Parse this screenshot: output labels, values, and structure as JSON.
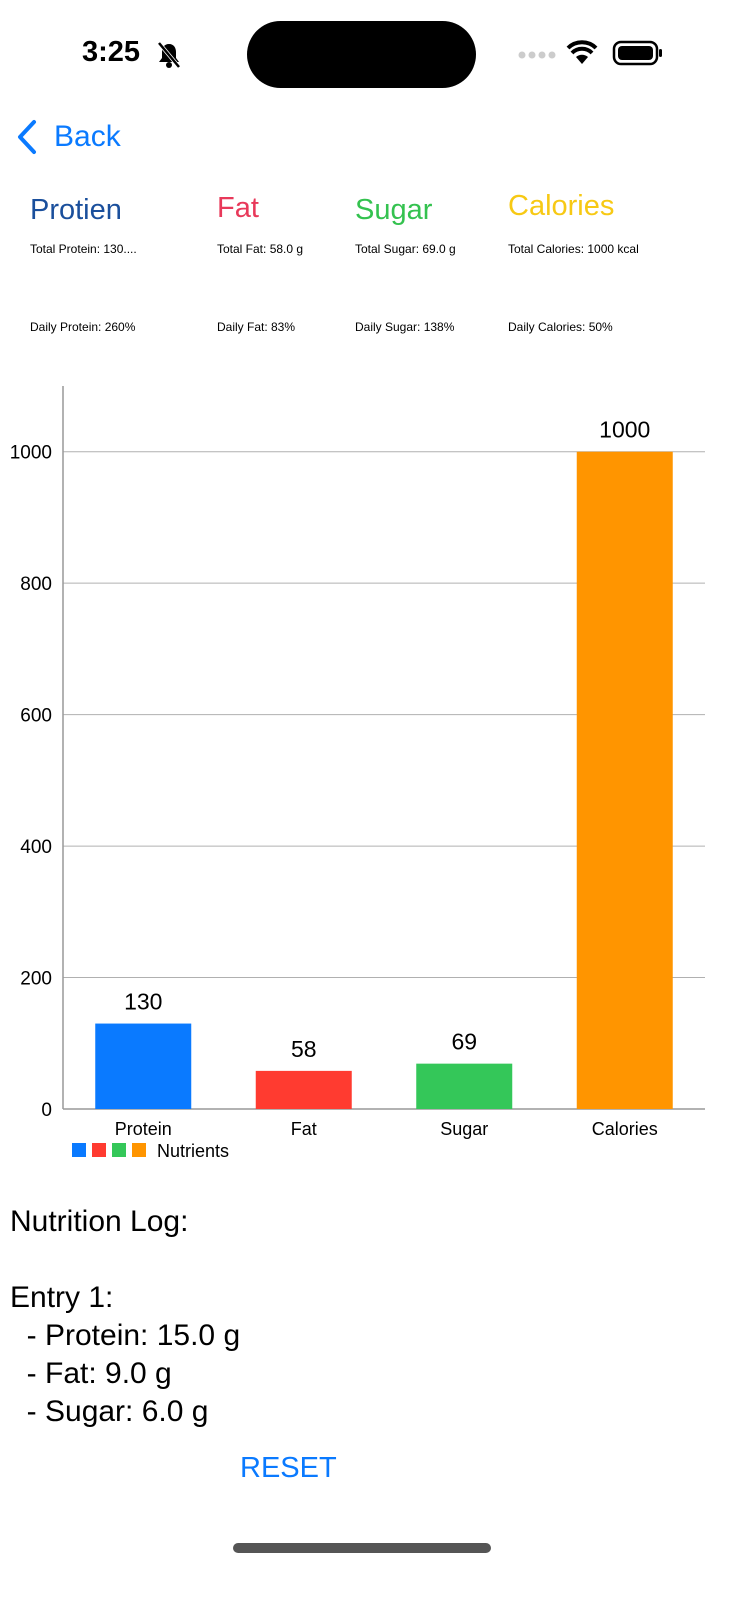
{
  "status_bar": {
    "time": "3:25",
    "icons": [
      "bell-slash-icon",
      "signal-icon",
      "wifi-icon",
      "battery-icon"
    ]
  },
  "nav": {
    "back_label": "Back"
  },
  "summary": [
    {
      "title": "Protien",
      "color": "#1a4f9c",
      "total": "Total Protein: 130....",
      "daily": "Daily Protein: 260%"
    },
    {
      "title": "Fat",
      "color": "#e8395a",
      "total": "Total Fat: 58.0 g",
      "daily": "Daily Fat: 83%"
    },
    {
      "title": "Sugar",
      "color": "#34c24f",
      "total": "Total Sugar: 69.0 g",
      "daily": "Daily Sugar: 138%"
    },
    {
      "title": "Calories",
      "color": "#f7c914",
      "total": "Total Calories: 1000 kcal",
      "daily": "Daily Calories: 50%"
    }
  ],
  "chart_data": {
    "type": "bar",
    "categories": [
      "Protein",
      "Fat",
      "Sugar",
      "Calories"
    ],
    "values": [
      130,
      58,
      69,
      1000
    ],
    "colors": [
      "#0a7aff",
      "#ff3b30",
      "#34c759",
      "#ff9500"
    ],
    "data_labels": [
      "130",
      "58",
      "69",
      "1000"
    ],
    "yticks": [
      0,
      200,
      400,
      600,
      800,
      1000
    ],
    "ylim": [
      0,
      1100
    ],
    "grid": true,
    "legend": {
      "label": "Nutrients",
      "placement": "bottom-left"
    }
  },
  "log": {
    "title": "Nutrition Log:",
    "entry_title": "Entry 1:",
    "lines": [
      "  - Protein: 15.0 g",
      "  - Fat: 9.0 g",
      "  - Sugar: 6.0 g"
    ]
  },
  "reset_label": "RESET"
}
